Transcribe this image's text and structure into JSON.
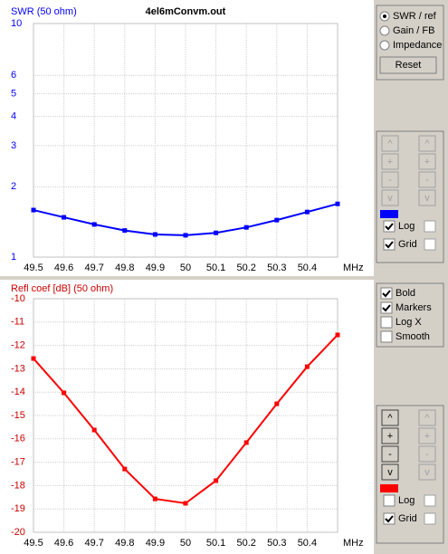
{
  "chart_data": [
    {
      "type": "line",
      "title": "SWR (50 ohm)",
      "subtitle": "4el6mConvm.out",
      "x_label": "MHz",
      "x": [
        49.5,
        49.6,
        49.7,
        49.8,
        49.9,
        50,
        50.1,
        50.2,
        50.3,
        50.4,
        50.5
      ],
      "series": [
        {
          "name": "SWR",
          "color": "#0000ff",
          "values": [
            1.59,
            1.48,
            1.38,
            1.3,
            1.25,
            1.24,
            1.27,
            1.34,
            1.44,
            1.56,
            1.69
          ]
        }
      ],
      "xlim": [
        49.5,
        50.5
      ],
      "xticks": [
        49.5,
        49.6,
        49.7,
        49.8,
        49.9,
        50,
        50.1,
        50.2,
        50.3,
        50.4
      ],
      "ylim": [
        1,
        10
      ],
      "yticks": [
        1,
        2,
        3,
        4,
        5,
        6,
        10
      ],
      "log_y": true,
      "grid": true,
      "title_color": "#0000ff"
    },
    {
      "type": "line",
      "title": "Refl coef [dB] (50 ohm)",
      "x_label": "MHz",
      "x": [
        49.5,
        49.6,
        49.7,
        49.8,
        49.9,
        50,
        50.1,
        50.2,
        50.3,
        50.4,
        50.5
      ],
      "series": [
        {
          "name": "Refl coef",
          "color": "#ff0000",
          "values": [
            -12.56,
            -14.03,
            -15.62,
            -17.29,
            -18.57,
            -18.76,
            -17.79,
            -16.16,
            -14.5,
            -12.91,
            -11.55
          ]
        }
      ],
      "xlim": [
        49.5,
        50.5
      ],
      "xticks": [
        49.5,
        49.6,
        49.7,
        49.8,
        49.9,
        50,
        50.1,
        50.2,
        50.3,
        50.4
      ],
      "ylim": [
        -20,
        -10
      ],
      "yticks": [
        -20,
        -19,
        -18,
        -17,
        -16,
        -15,
        -14,
        -13,
        -12,
        -11,
        -10
      ],
      "log_y": false,
      "grid": true,
      "title_color": "#cc0000"
    }
  ],
  "controls": {
    "view_options": [
      {
        "label": "SWR / ref",
        "selected": true
      },
      {
        "label": "Gain / FB",
        "selected": false
      },
      {
        "label": "Impedance",
        "selected": false
      }
    ],
    "reset": "Reset",
    "top_panel": {
      "left_buttons": [
        "^",
        "+",
        "-",
        "v"
      ],
      "left_enabled": false,
      "right_buttons": [
        "^",
        "+",
        "-",
        "v"
      ],
      "right_enabled": false,
      "log": {
        "label": "Log",
        "checked": true
      },
      "grid": {
        "label": "Grid",
        "checked": true
      }
    },
    "options": [
      {
        "label": "Bold",
        "checked": true
      },
      {
        "label": "Markers",
        "checked": true
      },
      {
        "label": "Log X",
        "checked": false
      },
      {
        "label": "Smooth",
        "checked": false
      }
    ],
    "bottom_panel": {
      "left_buttons": [
        "^",
        "+",
        "-",
        "v"
      ],
      "left_enabled": true,
      "right_buttons": [
        "^",
        "+",
        "-",
        "v"
      ],
      "right_enabled": false,
      "log": {
        "label": "Log",
        "checked": false
      },
      "grid": {
        "label": "Grid",
        "checked": true
      }
    }
  }
}
